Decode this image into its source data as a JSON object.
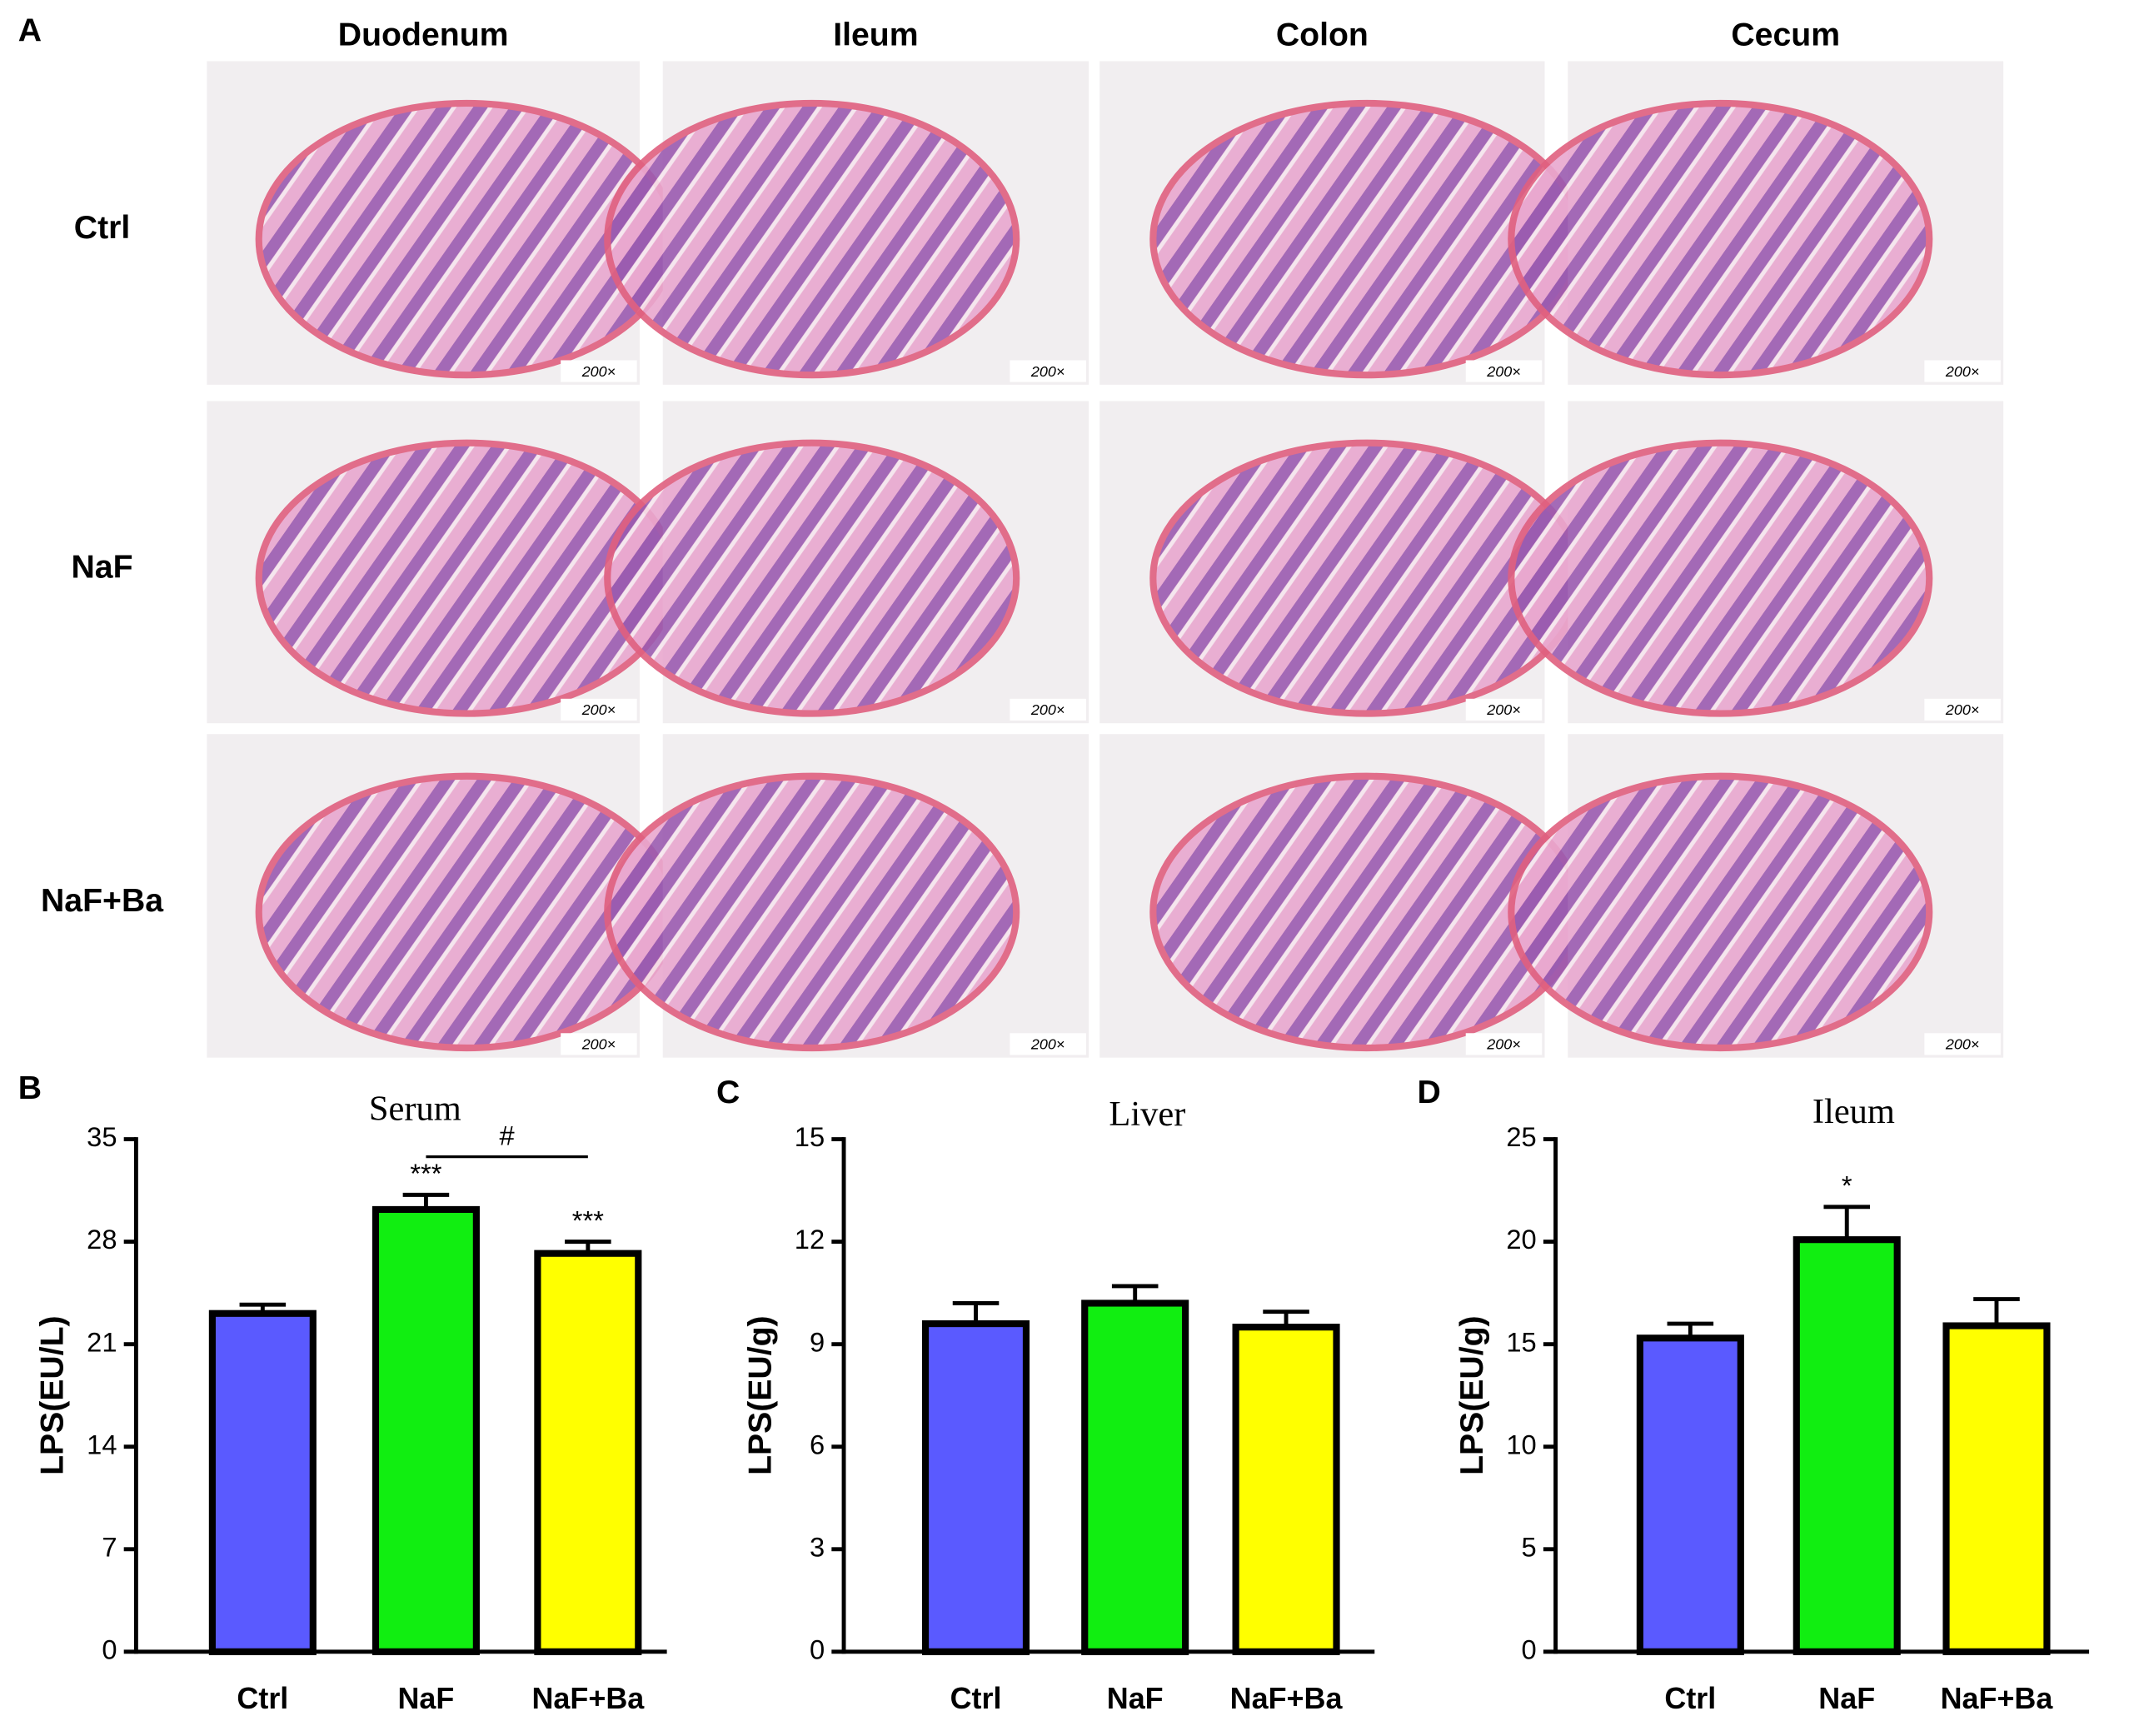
{
  "panel_a": {
    "panel": "A",
    "columns": [
      "Duodenum",
      "Ileum",
      "Colon",
      "Cecum"
    ],
    "rows": [
      "Ctrl",
      "NaF",
      "NaF+Ba"
    ],
    "magnification": "200×"
  },
  "chart_data": [
    {
      "type": "bar",
      "panel": "B",
      "title": "Serum",
      "y_label": "LPS(EU/L)",
      "categories": [
        "Ctrl",
        "NaF",
        "NaF+Ba"
      ],
      "values": [
        23.1,
        30.2,
        27.2
      ],
      "errors": [
        0.6,
        1.0,
        0.8
      ],
      "colors": [
        "#5a5aff",
        "#11ee11",
        "#ffff00"
      ],
      "ylim": [
        0,
        35
      ],
      "yticks": [
        0,
        7,
        14,
        21,
        28,
        35
      ],
      "annotations": [
        {
          "text": "***",
          "category": "NaF"
        },
        {
          "text": "***",
          "category": "NaF+Ba"
        }
      ],
      "brackets": [
        {
          "text": "#",
          "from": "NaF",
          "to": "NaF+Ba"
        }
      ]
    },
    {
      "type": "bar",
      "panel": "C",
      "title": "Liver",
      "y_label": "LPS(EU/g)",
      "categories": [
        "Ctrl",
        "NaF",
        "NaF+Ba"
      ],
      "values": [
        9.6,
        10.2,
        9.5
      ],
      "errors": [
        0.6,
        0.5,
        0.45
      ],
      "colors": [
        "#5a5aff",
        "#11ee11",
        "#ffff00"
      ],
      "ylim": [
        0,
        15
      ],
      "yticks": [
        0,
        3,
        6,
        9,
        12,
        15
      ],
      "annotations": [],
      "brackets": []
    },
    {
      "type": "bar",
      "panel": "D",
      "title": "Ileum",
      "y_label": "LPS(EU/g)",
      "categories": [
        "Ctrl",
        "NaF",
        "NaF+Ba"
      ],
      "values": [
        15.3,
        20.1,
        15.9
      ],
      "errors": [
        0.7,
        1.6,
        1.3
      ],
      "colors": [
        "#5a5aff",
        "#11ee11",
        "#ffff00"
      ],
      "ylim": [
        0,
        25
      ],
      "yticks": [
        0,
        5,
        10,
        15,
        20,
        25
      ],
      "annotations": [
        {
          "text": "*",
          "category": "NaF"
        }
      ],
      "brackets": []
    }
  ]
}
